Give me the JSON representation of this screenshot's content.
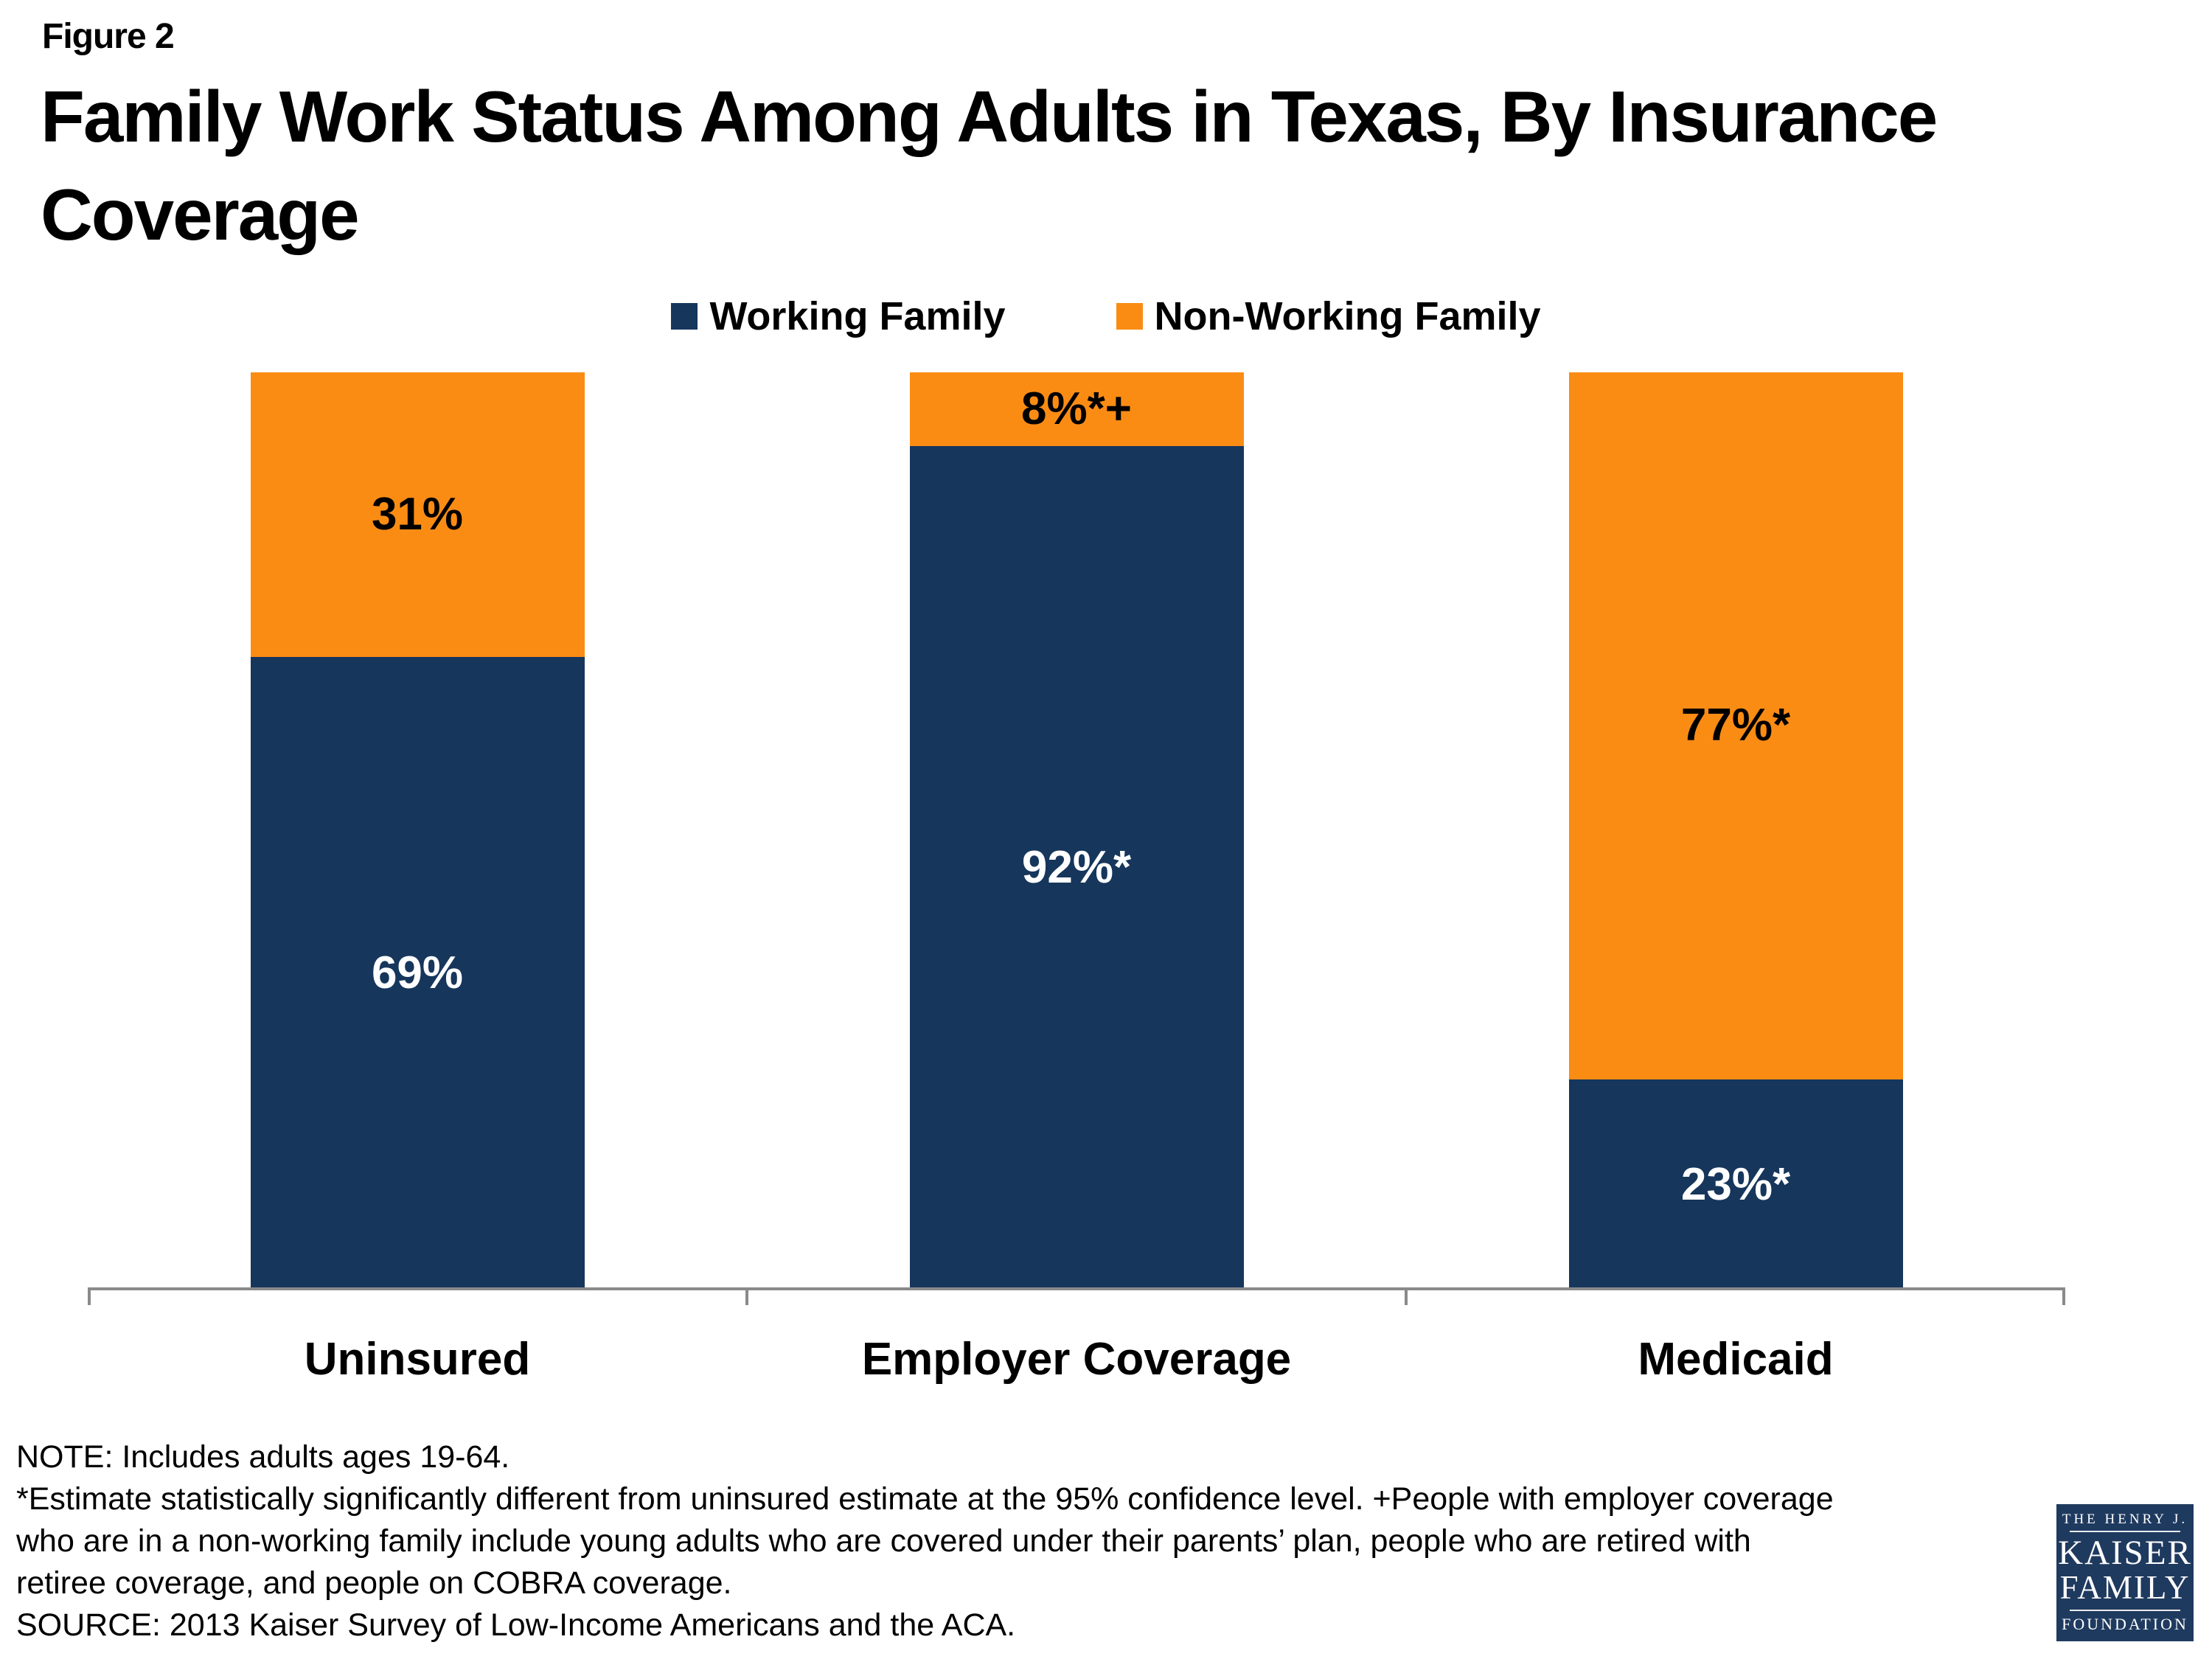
{
  "header": {
    "figure_label": "Figure 2",
    "title": "Family Work Status Among Adults in Texas, By Insurance Coverage",
    "title_line1": "Family Work Status Among Adults in Texas, By Insurance",
    "title_line2": "Coverage"
  },
  "legend": [
    {
      "label": "Working Family",
      "color": "#16365C"
    },
    {
      "label": "Non-Working Family",
      "color": "#FA8C14"
    }
  ],
  "chart_data": {
    "type": "bar",
    "subtype": "stacked-100-percent-column",
    "title": "Family Work Status Among Adults in Texas, By Insurance Coverage",
    "categories": [
      "Uninsured",
      "Employer Coverage",
      "Medicaid"
    ],
    "series": [
      {
        "name": "Working Family",
        "color": "#16365C",
        "label_color": "#FFFFFF",
        "values": [
          69,
          92,
          23
        ],
        "data_labels": [
          "69%",
          "92%*",
          "23%*"
        ]
      },
      {
        "name": "Non-Working Family",
        "color": "#FA8C14",
        "label_color": "#000000",
        "values": [
          31,
          8,
          77
        ],
        "data_labels": [
          "31%",
          "8%*+",
          "77%*"
        ]
      }
    ],
    "ylim": [
      0,
      100
    ],
    "grid": false,
    "legend_position": "top-center",
    "axis_color": "#8A8A8A"
  },
  "notes": {
    "lines": [
      "NOTE: Includes adults ages 19-64.",
      "*Estimate statistically significantly different from uninsured estimate at the 95% confidence level. +People with employer coverage",
      "who are in a non-working family include young adults who are covered under their parents’ plan, people who are retired with",
      "retiree coverage, and people on COBRA coverage.",
      "SOURCE: 2013 Kaiser Survey of Low-Income Americans and the ACA."
    ]
  },
  "logo": {
    "line1": "THE HENRY J.",
    "line2": "KAISER",
    "line3": "FAMILY",
    "line4": "FOUNDATION",
    "color": "#1F3A5F"
  }
}
